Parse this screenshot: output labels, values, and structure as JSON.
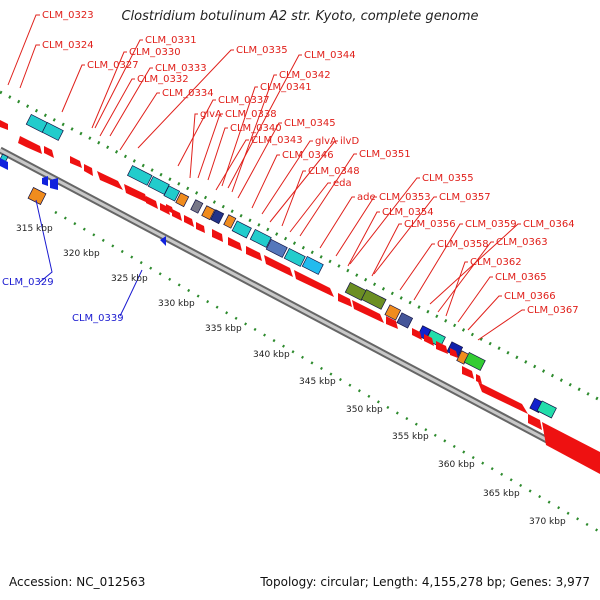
{
  "title": "Clostridium botulinum A2 str. Kyoto, complete genome",
  "footer": {
    "accession": "Accession: NC_012563",
    "summary": "Topology: circular; Length: 4,155,278 bp; Genes: 3,977"
  },
  "colors": {
    "forward_cds": "#ee1111",
    "reverse_cds": "#1122dd",
    "backbone": "#999999",
    "tick": "#2e8b2e",
    "label_forward": "#e0201b",
    "label_reverse": "#1a1ad0"
  },
  "forward_labels": [
    "CLM_0323",
    "CLM_0324",
    "CLM_0327",
    "CLM_0331",
    "CLM_0330",
    "CLM_0333",
    "CLM_0332",
    "CLM_0335",
    "CLM_0334",
    "CLM_0337",
    "glvA",
    "CLM_0338",
    "CLM_0340",
    "CLM_0343",
    "CLM_0344",
    "CLM_0342",
    "CLM_0341",
    "CLM_0345",
    "CLM_0346",
    "glvA",
    "ilvD",
    "CLM_0348",
    "eda",
    "CLM_0351",
    "ade",
    "CLM_0353",
    "CLM_0354",
    "CLM_0355",
    "CLM_0357",
    "CLM_0356",
    "CLM_0358",
    "CLM_0359",
    "CLM_0364",
    "CLM_0363",
    "CLM_0362",
    "CLM_0365",
    "CLM_0366",
    "CLM_0367"
  ],
  "reverse_labels": [
    "CLM_0329",
    "CLM_0339"
  ],
  "kbp_labels": [
    "315 kbp",
    "320 kbp",
    "325 kbp",
    "330 kbp",
    "335 kbp",
    "340 kbp",
    "345 kbp",
    "350 kbp",
    "355 kbp",
    "360 kbp",
    "365 kbp",
    "370 kbp"
  ]
}
